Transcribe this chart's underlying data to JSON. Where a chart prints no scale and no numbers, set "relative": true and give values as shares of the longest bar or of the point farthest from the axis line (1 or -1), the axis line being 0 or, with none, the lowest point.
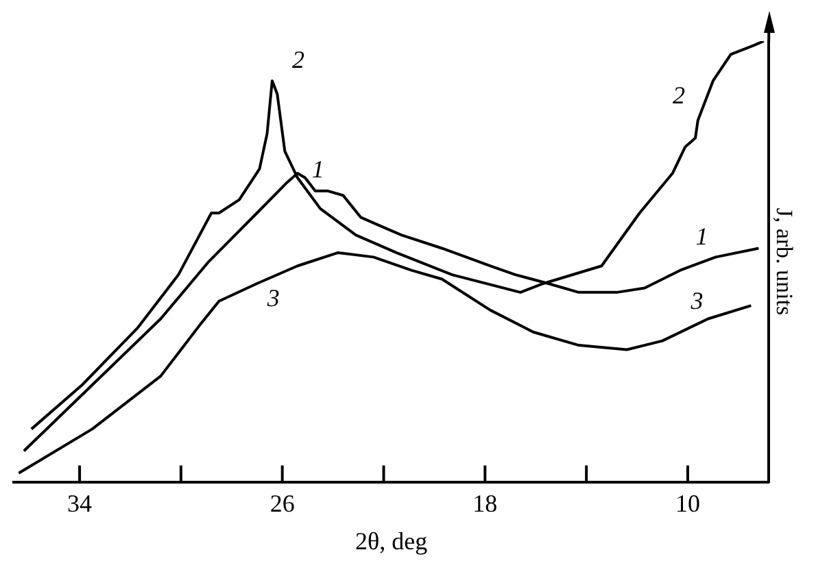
{
  "chart_data": {
    "type": "line",
    "xlabel": "2θ, deg",
    "ylabel": "J, arb. units",
    "relative": true,
    "xlim": [
      36.6,
      6.8
    ],
    "xticks": [
      34,
      {
        "value": 30,
        "label": null
      },
      26,
      {
        "value": 22,
        "label": null
      },
      18,
      {
        "value": 14,
        "label": null
      },
      10
    ],
    "grid": false,
    "legend": false,
    "marker": "none",
    "line_style": "solid",
    "series": [
      {
        "name": "1",
        "color": "#000000",
        "x": [
          36.2,
          33.5,
          30.8,
          28.9,
          27.0,
          25.8,
          25.4,
          25.1,
          24.7,
          24.2,
          23.6,
          22.9,
          22.1,
          21.3,
          19.7,
          17.8,
          16.8,
          15.5,
          14.3,
          12.8,
          11.7,
          10.3,
          8.9,
          7.2
        ],
        "values": [
          0.07,
          0.22,
          0.37,
          0.5,
          0.61,
          0.68,
          0.7,
          0.69,
          0.66,
          0.66,
          0.65,
          0.6,
          0.58,
          0.56,
          0.53,
          0.49,
          0.47,
          0.45,
          0.43,
          0.43,
          0.44,
          0.48,
          0.51,
          0.53
        ]
      },
      {
        "name": "2",
        "color": "#000000",
        "x": [
          35.9,
          33.9,
          31.7,
          30.1,
          28.8,
          28.5,
          27.7,
          26.9,
          26.6,
          26.4,
          26.2,
          25.9,
          25.4,
          24.5,
          23.1,
          21.5,
          19.3,
          16.6,
          15.7,
          13.4,
          11.9,
          10.6,
          10.1,
          9.7,
          9.6,
          9.0,
          8.3,
          7.4,
          7.0
        ],
        "values": [
          0.12,
          0.22,
          0.35,
          0.47,
          0.61,
          0.61,
          0.64,
          0.71,
          0.79,
          0.91,
          0.88,
          0.75,
          0.69,
          0.62,
          0.56,
          0.52,
          0.47,
          0.43,
          0.45,
          0.49,
          0.61,
          0.7,
          0.76,
          0.78,
          0.82,
          0.91,
          0.97,
          0.99,
          1
        ]
      },
      {
        "name": "3",
        "color": "#000000",
        "x": [
          36.4,
          33.5,
          30.8,
          29.2,
          28.5,
          27.0,
          25.4,
          23.8,
          22.4,
          20.9,
          19.7,
          17.8,
          16.1,
          14.3,
          12.4,
          11.0,
          9.2,
          7.5
        ],
        "values": [
          0.02,
          0.12,
          0.24,
          0.36,
          0.41,
          0.45,
          0.49,
          0.52,
          0.51,
          0.48,
          0.46,
          0.39,
          0.34,
          0.31,
          0.3,
          0.32,
          0.37,
          0.4
        ]
      }
    ]
  }
}
